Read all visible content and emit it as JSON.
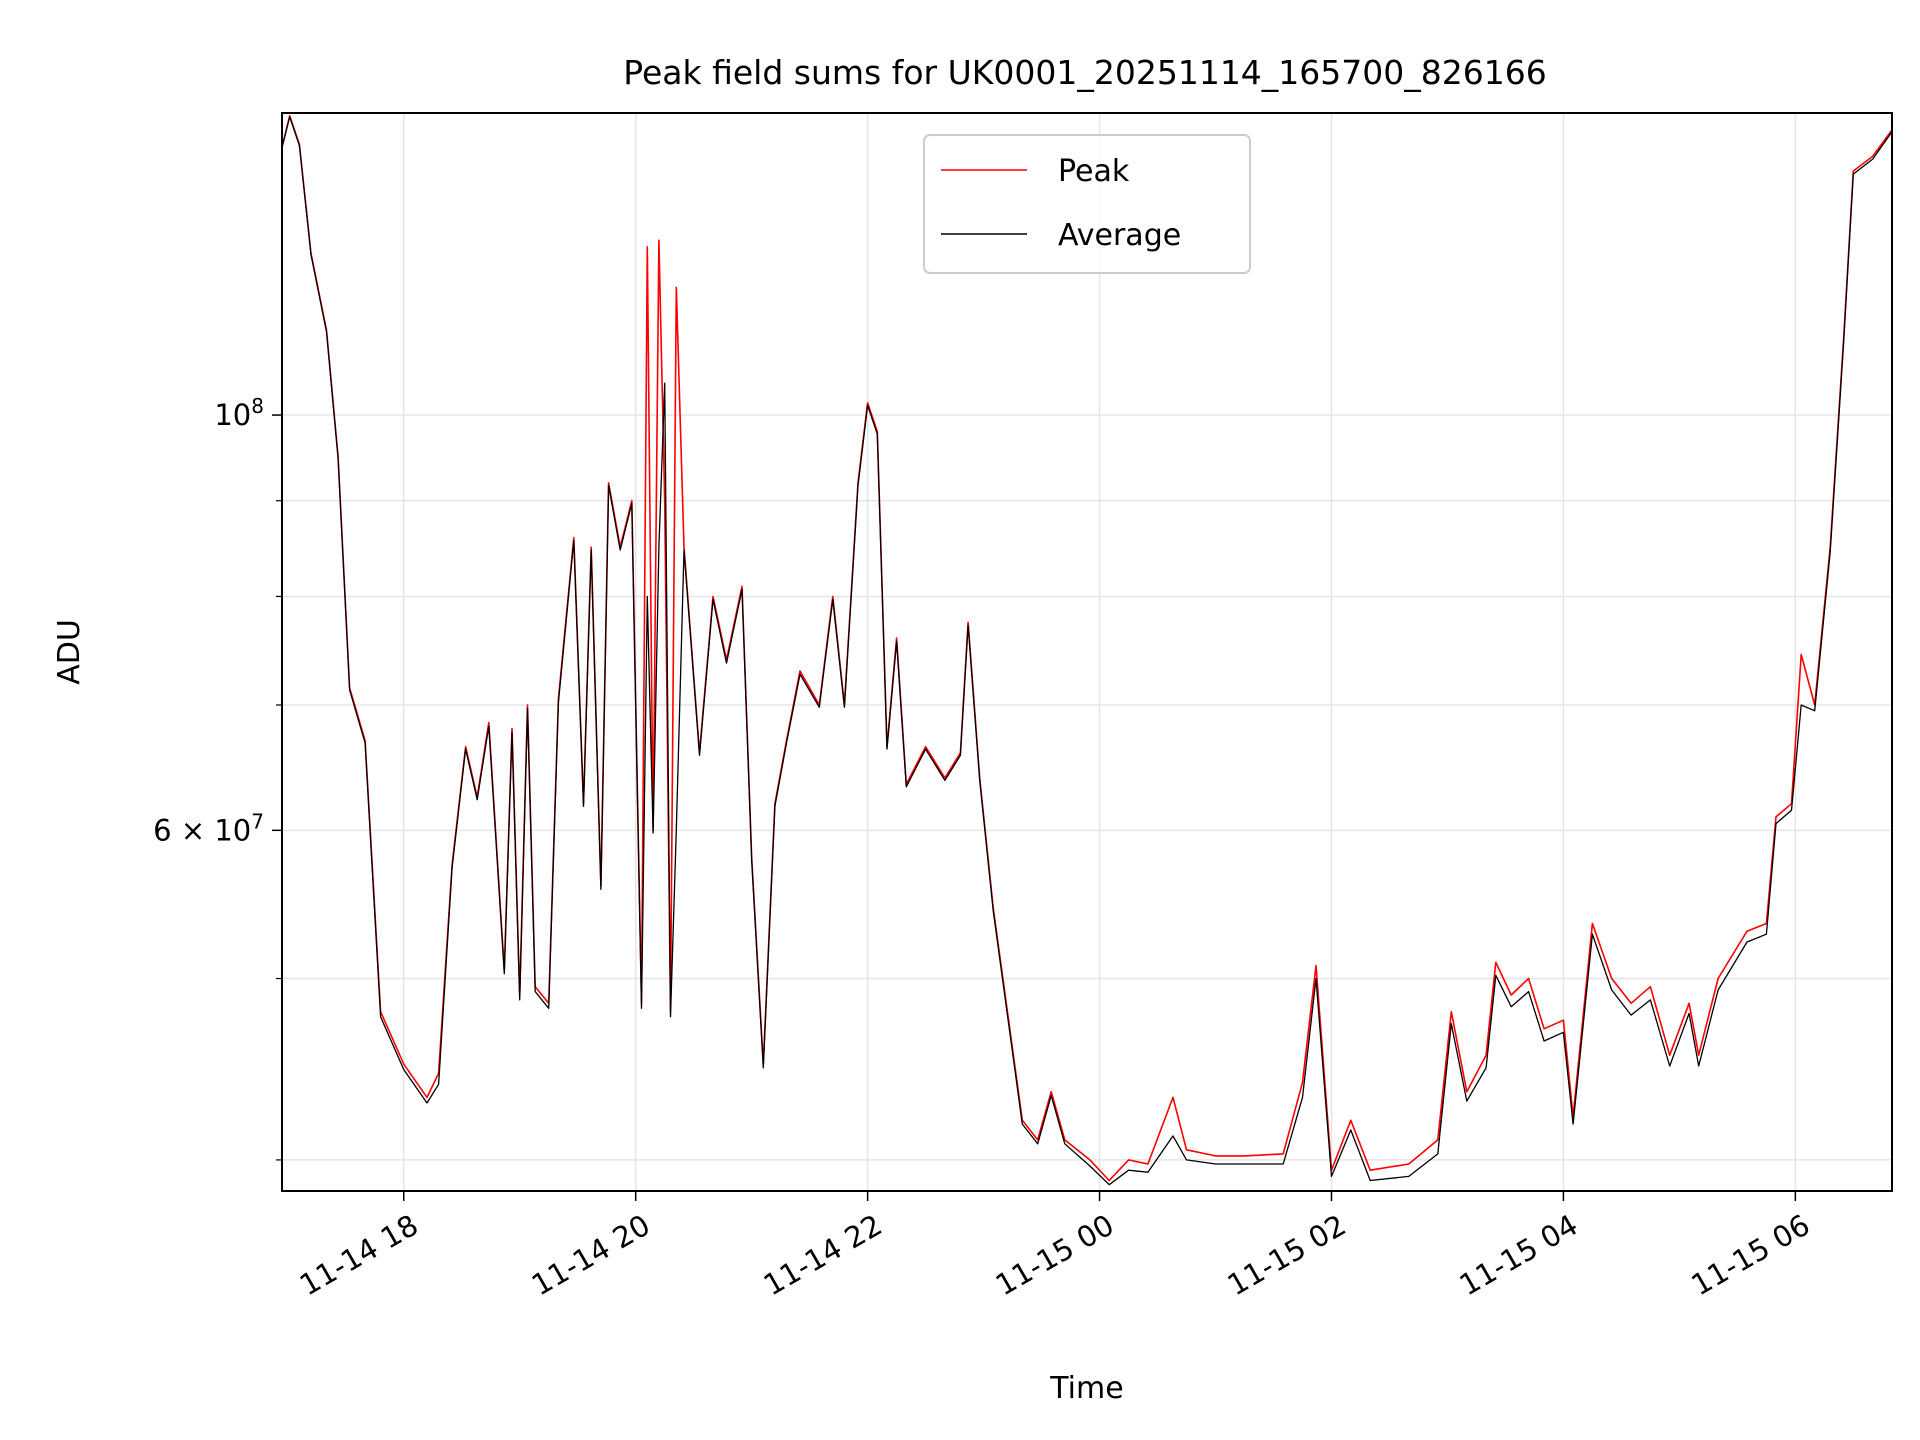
{
  "chart_data": {
    "type": "line",
    "title": "Peak field sums for UK0001_20251114_165700_826166",
    "xlabel": "Time",
    "ylabel": "ADU",
    "y_scale": "log",
    "ylim": [
      38500000,
      145000000
    ],
    "xlim": [
      "2025-11-14 16:57",
      "2025-11-15 06:50"
    ],
    "grid": true,
    "legend_position": "upper center",
    "x_tick_labels": [
      {
        "t": "2025-11-14 18:00",
        "label": "11-14 18"
      },
      {
        "t": "2025-11-14 20:00",
        "label": "11-14 20"
      },
      {
        "t": "2025-11-14 22:00",
        "label": "11-14 22"
      },
      {
        "t": "2025-11-15 00:00",
        "label": "11-15 00"
      },
      {
        "t": "2025-11-15 02:00",
        "label": "11-15 02"
      },
      {
        "t": "2025-11-15 04:00",
        "label": "11-15 04"
      },
      {
        "t": "2025-11-15 06:00",
        "label": "11-15 06"
      }
    ],
    "y_tick_labels": [
      {
        "value": 100000000,
        "base": "10",
        "exp": "8"
      },
      {
        "value": 60000000,
        "base": "6 × 10",
        "exp": "7"
      }
    ],
    "y_minor_ticks": [
      40000000,
      50000000,
      70000000,
      80000000,
      90000000
    ],
    "series": [
      {
        "name": "Peak",
        "color": "#ff0000",
        "points": [
          [
            "2025-11-14 16:57",
            139000000
          ],
          [
            "2025-11-14 17:01",
            144500000
          ],
          [
            "2025-11-14 17:06",
            139500000
          ],
          [
            "2025-11-14 17:12",
            122000000
          ],
          [
            "2025-11-14 17:20",
            111000000
          ],
          [
            "2025-11-14 17:26",
            95000000
          ],
          [
            "2025-11-14 17:32",
            71500000
          ],
          [
            "2025-11-14 17:40",
            67000000
          ],
          [
            "2025-11-14 17:48",
            48000000
          ],
          [
            "2025-11-14 18:00",
            45000000
          ],
          [
            "2025-11-14 18:12",
            43200000
          ],
          [
            "2025-11-14 18:18",
            44500000
          ],
          [
            "2025-11-14 18:25",
            57500000
          ],
          [
            "2025-11-14 18:32",
            66500000
          ],
          [
            "2025-11-14 18:38",
            62500000
          ],
          [
            "2025-11-14 18:44",
            68500000
          ],
          [
            "2025-11-14 18:52",
            50500000
          ],
          [
            "2025-11-14 18:56",
            68000000
          ],
          [
            "2025-11-14 19:00",
            49000000
          ],
          [
            "2025-11-14 19:04",
            70000000
          ],
          [
            "2025-11-14 19:08",
            49500000
          ],
          [
            "2025-11-14 19:15",
            48500000
          ],
          [
            "2025-11-14 19:20",
            70500000
          ],
          [
            "2025-11-14 19:28",
            86000000
          ],
          [
            "2025-11-14 19:33",
            62000000
          ],
          [
            "2025-11-14 19:37",
            85000000
          ],
          [
            "2025-11-14 19:42",
            56000000
          ],
          [
            "2025-11-14 19:46",
            92000000
          ],
          [
            "2025-11-14 19:52",
            85000000
          ],
          [
            "2025-11-14 19:58",
            90000000
          ],
          [
            "2025-11-14 20:03",
            48500000
          ],
          [
            "2025-11-14 20:06",
            123000000
          ],
          [
            "2025-11-14 20:09",
            60000000
          ],
          [
            "2025-11-14 20:12",
            124000000
          ],
          [
            "2025-11-14 20:15",
            90000000
          ],
          [
            "2025-11-14 20:18",
            48000000
          ],
          [
            "2025-11-14 20:21",
            117000000
          ],
          [
            "2025-11-14 20:25",
            85000000
          ],
          [
            "2025-11-14 20:33",
            66000000
          ],
          [
            "2025-11-14 20:40",
            80000000
          ],
          [
            "2025-11-14 20:47",
            74000000
          ],
          [
            "2025-11-14 20:55",
            81000000
          ],
          [
            "2025-11-14 21:00",
            58000000
          ],
          [
            "2025-11-14 21:06",
            45000000
          ],
          [
            "2025-11-14 21:12",
            62000000
          ],
          [
            "2025-11-14 21:18",
            67000000
          ],
          [
            "2025-11-14 21:25",
            73000000
          ],
          [
            "2025-11-14 21:35",
            70000000
          ],
          [
            "2025-11-14 21:42",
            80000000
          ],
          [
            "2025-11-14 21:48",
            70000000
          ],
          [
            "2025-11-14 21:55",
            92000000
          ],
          [
            "2025-11-14 22:00",
            101500000
          ],
          [
            "2025-11-14 22:05",
            98000000
          ],
          [
            "2025-11-14 22:10",
            66500000
          ],
          [
            "2025-11-14 22:15",
            76000000
          ],
          [
            "2025-11-14 22:20",
            63500000
          ],
          [
            "2025-11-14 22:30",
            66500000
          ],
          [
            "2025-11-14 22:40",
            64000000
          ],
          [
            "2025-11-14 22:48",
            66000000
          ],
          [
            "2025-11-14 22:52",
            77500000
          ],
          [
            "2025-11-14 22:58",
            64000000
          ],
          [
            "2025-11-14 23:05",
            54500000
          ],
          [
            "2025-11-14 23:10",
            50000000
          ],
          [
            "2025-11-14 23:20",
            42000000
          ],
          [
            "2025-11-14 23:28",
            41000000
          ],
          [
            "2025-11-14 23:35",
            43500000
          ],
          [
            "2025-11-14 23:42",
            41000000
          ],
          [
            "2025-11-14 23:55",
            40000000
          ],
          [
            "2025-11-15 00:05",
            39000000
          ],
          [
            "2025-11-15 00:15",
            40000000
          ],
          [
            "2025-11-15 00:25",
            39800000
          ],
          [
            "2025-11-15 00:38",
            43200000
          ],
          [
            "2025-11-15 00:45",
            40500000
          ],
          [
            "2025-11-15 01:00",
            40200000
          ],
          [
            "2025-11-15 01:15",
            40200000
          ],
          [
            "2025-11-15 01:35",
            40300000
          ],
          [
            "2025-11-15 01:45",
            44000000
          ],
          [
            "2025-11-15 01:52",
            50800000
          ],
          [
            "2025-11-15 02:00",
            39500000
          ],
          [
            "2025-11-15 02:10",
            42000000
          ],
          [
            "2025-11-15 02:20",
            39500000
          ],
          [
            "2025-11-15 02:40",
            39800000
          ],
          [
            "2025-11-15 02:55",
            41000000
          ],
          [
            "2025-11-15 03:02",
            48000000
          ],
          [
            "2025-11-15 03:10",
            43500000
          ],
          [
            "2025-11-15 03:20",
            45500000
          ],
          [
            "2025-11-15 03:25",
            51000000
          ],
          [
            "2025-11-15 03:33",
            49000000
          ],
          [
            "2025-11-15 03:42",
            50000000
          ],
          [
            "2025-11-15 03:50",
            47000000
          ],
          [
            "2025-11-15 04:00",
            47500000
          ],
          [
            "2025-11-15 04:05",
            42200000
          ],
          [
            "2025-11-15 04:15",
            53500000
          ],
          [
            "2025-11-15 04:25",
            50000000
          ],
          [
            "2025-11-15 04:35",
            48500000
          ],
          [
            "2025-11-15 04:45",
            49500000
          ],
          [
            "2025-11-15 04:55",
            45500000
          ],
          [
            "2025-11-15 05:05",
            48500000
          ],
          [
            "2025-11-15 05:10",
            45500000
          ],
          [
            "2025-11-15 05:20",
            50000000
          ],
          [
            "2025-11-15 05:35",
            53000000
          ],
          [
            "2025-11-15 05:45",
            53500000
          ],
          [
            "2025-11-15 05:50",
            61000000
          ],
          [
            "2025-11-15 05:58",
            62000000
          ],
          [
            "2025-11-15 06:03",
            74500000
          ],
          [
            "2025-11-15 06:10",
            70000000
          ],
          [
            "2025-11-15 06:18",
            85000000
          ],
          [
            "2025-11-15 06:25",
            110000000
          ],
          [
            "2025-11-15 06:30",
            135000000
          ],
          [
            "2025-11-15 06:40",
            137500000
          ],
          [
            "2025-11-15 06:50",
            142000000
          ]
        ]
      },
      {
        "name": "Average",
        "color": "#000000",
        "points": [
          [
            "2025-11-14 16:57",
            139000000
          ],
          [
            "2025-11-14 17:01",
            144300000
          ],
          [
            "2025-11-14 17:06",
            139300000
          ],
          [
            "2025-11-14 17:12",
            121800000
          ],
          [
            "2025-11-14 17:20",
            110800000
          ],
          [
            "2025-11-14 17:26",
            94800000
          ],
          [
            "2025-11-14 17:32",
            71300000
          ],
          [
            "2025-11-14 17:40",
            66800000
          ],
          [
            "2025-11-14 17:48",
            47700000
          ],
          [
            "2025-11-14 18:00",
            44700000
          ],
          [
            "2025-11-14 18:12",
            42900000
          ],
          [
            "2025-11-14 18:18",
            43900000
          ],
          [
            "2025-11-14 18:25",
            57300000
          ],
          [
            "2025-11-14 18:32",
            66300000
          ],
          [
            "2025-11-14 18:38",
            62300000
          ],
          [
            "2025-11-14 18:44",
            68200000
          ],
          [
            "2025-11-14 18:52",
            50300000
          ],
          [
            "2025-11-14 18:56",
            67700000
          ],
          [
            "2025-11-14 19:00",
            48700000
          ],
          [
            "2025-11-14 19:04",
            69700000
          ],
          [
            "2025-11-14 19:08",
            49200000
          ],
          [
            "2025-11-14 19:15",
            48200000
          ],
          [
            "2025-11-14 19:20",
            70200000
          ],
          [
            "2025-11-14 19:28",
            85700000
          ],
          [
            "2025-11-14 19:33",
            61800000
          ],
          [
            "2025-11-14 19:37",
            84700000
          ],
          [
            "2025-11-14 19:42",
            55800000
          ],
          [
            "2025-11-14 19:46",
            91700000
          ],
          [
            "2025-11-14 19:52",
            84700000
          ],
          [
            "2025-11-14 19:58",
            89700000
          ],
          [
            "2025-11-14 20:03",
            48200000
          ],
          [
            "2025-11-14 20:06",
            80000000
          ],
          [
            "2025-11-14 20:09",
            59800000
          ],
          [
            "2025-11-14 20:12",
            85000000
          ],
          [
            "2025-11-14 20:15",
            104000000
          ],
          [
            "2025-11-14 20:18",
            47700000
          ],
          [
            "2025-11-14 20:21",
            60000000
          ],
          [
            "2025-11-14 20:25",
            84700000
          ],
          [
            "2025-11-14 20:33",
            65800000
          ],
          [
            "2025-11-14 20:40",
            79700000
          ],
          [
            "2025-11-14 20:47",
            73700000
          ],
          [
            "2025-11-14 20:55",
            80700000
          ],
          [
            "2025-11-14 21:00",
            57800000
          ],
          [
            "2025-11-14 21:06",
            44800000
          ],
          [
            "2025-11-14 21:12",
            61800000
          ],
          [
            "2025-11-14 21:18",
            66800000
          ],
          [
            "2025-11-14 21:25",
            72700000
          ],
          [
            "2025-11-14 21:35",
            69800000
          ],
          [
            "2025-11-14 21:42",
            79700000
          ],
          [
            "2025-11-14 21:48",
            69800000
          ],
          [
            "2025-11-14 21:55",
            91700000
          ],
          [
            "2025-11-14 22:00",
            101200000
          ],
          [
            "2025-11-14 22:05",
            97700000
          ],
          [
            "2025-11-14 22:10",
            66300000
          ],
          [
            "2025-11-14 22:15",
            75700000
          ],
          [
            "2025-11-14 22:20",
            63300000
          ],
          [
            "2025-11-14 22:30",
            66300000
          ],
          [
            "2025-11-14 22:40",
            63800000
          ],
          [
            "2025-11-14 22:48",
            65800000
          ],
          [
            "2025-11-14 22:52",
            77200000
          ],
          [
            "2025-11-14 22:58",
            63800000
          ],
          [
            "2025-11-14 23:05",
            54300000
          ],
          [
            "2025-11-14 23:10",
            49800000
          ],
          [
            "2025-11-14 23:20",
            41800000
          ],
          [
            "2025-11-14 23:28",
            40800000
          ],
          [
            "2025-11-14 23:35",
            43300000
          ],
          [
            "2025-11-14 23:42",
            40800000
          ],
          [
            "2025-11-14 23:55",
            39700000
          ],
          [
            "2025-11-15 00:05",
            38800000
          ],
          [
            "2025-11-15 00:15",
            39500000
          ],
          [
            "2025-11-15 00:25",
            39400000
          ],
          [
            "2025-11-15 00:38",
            41200000
          ],
          [
            "2025-11-15 00:45",
            40000000
          ],
          [
            "2025-11-15 01:00",
            39800000
          ],
          [
            "2025-11-15 01:15",
            39800000
          ],
          [
            "2025-11-15 01:35",
            39800000
          ],
          [
            "2025-11-15 01:45",
            43200000
          ],
          [
            "2025-11-15 01:52",
            50000000
          ],
          [
            "2025-11-15 02:00",
            39200000
          ],
          [
            "2025-11-15 02:10",
            41500000
          ],
          [
            "2025-11-15 02:20",
            39000000
          ],
          [
            "2025-11-15 02:40",
            39200000
          ],
          [
            "2025-11-15 02:55",
            40300000
          ],
          [
            "2025-11-15 03:02",
            47300000
          ],
          [
            "2025-11-15 03:10",
            43000000
          ],
          [
            "2025-11-15 03:20",
            44800000
          ],
          [
            "2025-11-15 03:25",
            50200000
          ],
          [
            "2025-11-15 03:33",
            48300000
          ],
          [
            "2025-11-15 03:42",
            49200000
          ],
          [
            "2025-11-15 03:50",
            46300000
          ],
          [
            "2025-11-15 04:00",
            46800000
          ],
          [
            "2025-11-15 04:05",
            41800000
          ],
          [
            "2025-11-15 04:15",
            52800000
          ],
          [
            "2025-11-15 04:25",
            49300000
          ],
          [
            "2025-11-15 04:35",
            47800000
          ],
          [
            "2025-11-15 04:45",
            48700000
          ],
          [
            "2025-11-15 04:55",
            44900000
          ],
          [
            "2025-11-15 05:05",
            47900000
          ],
          [
            "2025-11-15 05:10",
            44900000
          ],
          [
            "2025-11-15 05:20",
            49300000
          ],
          [
            "2025-11-15 05:35",
            52300000
          ],
          [
            "2025-11-15 05:45",
            52800000
          ],
          [
            "2025-11-15 05:50",
            60500000
          ],
          [
            "2025-11-15 05:58",
            61500000
          ],
          [
            "2025-11-15 06:03",
            70000000
          ],
          [
            "2025-11-15 06:10",
            69500000
          ],
          [
            "2025-11-15 06:18",
            84500000
          ],
          [
            "2025-11-15 06:25",
            109500000
          ],
          [
            "2025-11-15 06:30",
            134500000
          ],
          [
            "2025-11-15 06:40",
            137000000
          ],
          [
            "2025-11-15 06:50",
            141700000
          ]
        ]
      }
    ]
  }
}
